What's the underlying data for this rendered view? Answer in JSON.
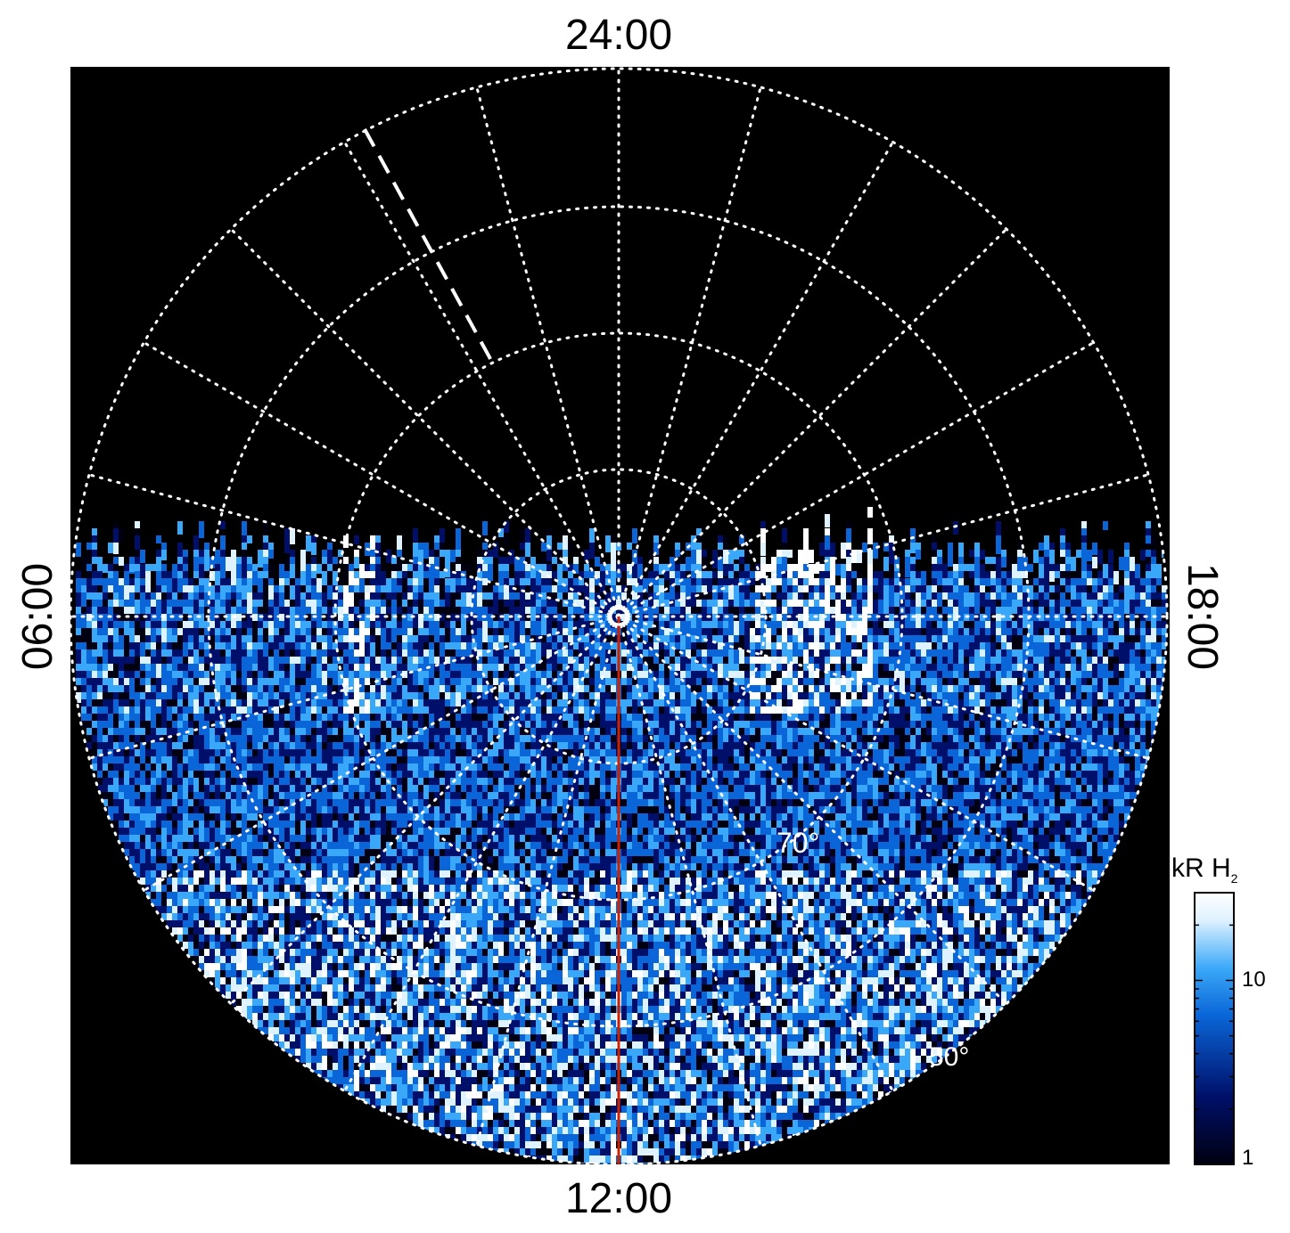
{
  "labels": {
    "top": "24:00",
    "bottom": "12:00",
    "left": "06:00",
    "right": "18:00"
  },
  "colorbar": {
    "title_main": "kR H",
    "title_sub": "2",
    "ticks": [
      "10",
      "1"
    ],
    "scale": "log",
    "range": [
      1,
      30
    ],
    "colors": [
      "#000010",
      "#00106a",
      "#0a66d8",
      "#3aa8f8",
      "#dff2ff",
      "#ffffff"
    ]
  },
  "chart_data": {
    "type": "heatmap",
    "projection": "polar",
    "ring_labels": [
      "70°",
      "50°"
    ],
    "time_labels": [
      "24:00",
      "06:00",
      "12:00",
      "18:00"
    ],
    "colorbar_ticks": [
      "10",
      "1"
    ]
  },
  "colors": {
    "background": "#000000",
    "grid": "#ffffff",
    "meridian_line": "#cc2200"
  }
}
